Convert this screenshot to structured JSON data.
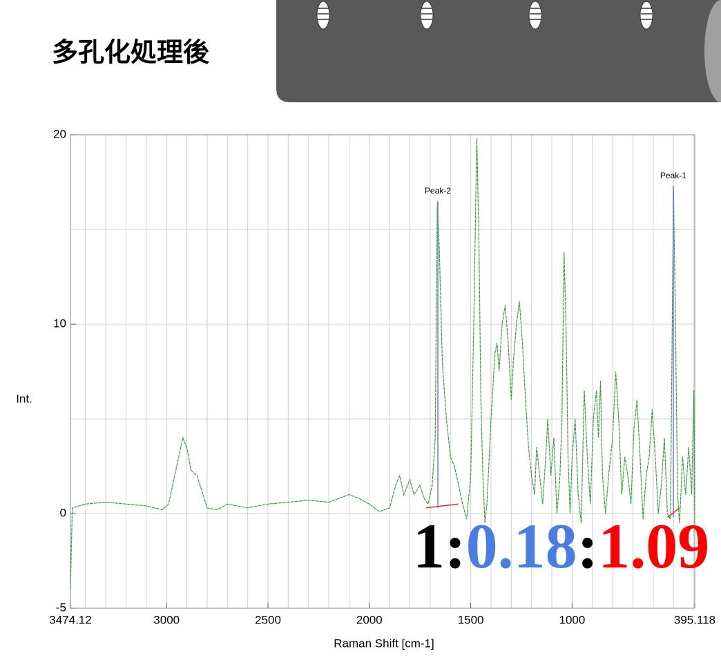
{
  "header": {
    "title": "多孔化処理後"
  },
  "chart_data": {
    "type": "line",
    "xlabel": "Raman Shift [cm-1]",
    "ylabel": "Int.",
    "xlim": [
      3474.12,
      395.118
    ],
    "ylim": [
      -5,
      20
    ],
    "xticks": [
      3474.12,
      3000,
      2500,
      2000,
      1500,
      1000,
      395.118
    ],
    "yticks": [
      -5,
      0,
      10,
      20
    ],
    "xgrid": [
      3400,
      3300,
      3200,
      3100,
      3000,
      2900,
      2800,
      2700,
      2600,
      2500,
      2400,
      2300,
      2200,
      2100,
      2000,
      1900,
      1800,
      1700,
      1600,
      1500,
      1400,
      1300,
      1200,
      1100,
      1000,
      900,
      800,
      700,
      600,
      500,
      400
    ],
    "ygrid": [
      -5,
      0,
      5,
      10,
      15,
      20
    ],
    "grid": true,
    "series": [
      {
        "color": "#3f9b3f",
        "x": [
          3474.12,
          3465,
          3400,
          3300,
          3200,
          3100,
          3020,
          2990,
          2950,
          2920,
          2900,
          2880,
          2850,
          2820,
          2800,
          2750,
          2700,
          2600,
          2500,
          2400,
          2300,
          2200,
          2100,
          2050,
          2000,
          1950,
          1900,
          1870,
          1850,
          1830,
          1800,
          1780,
          1750,
          1730,
          1710,
          1690,
          1675,
          1665,
          1655,
          1640,
          1620,
          1600,
          1580,
          1560,
          1540,
          1520,
          1500,
          1485,
          1470,
          1460,
          1450,
          1440,
          1430,
          1420,
          1400,
          1380,
          1370,
          1360,
          1345,
          1330,
          1315,
          1300,
          1290,
          1275,
          1260,
          1245,
          1230,
          1215,
          1200,
          1185,
          1175,
          1160,
          1145,
          1130,
          1120,
          1105,
          1090,
          1075,
          1060,
          1050,
          1040,
          1030,
          1020,
          1010,
          1000,
          985,
          970,
          955,
          940,
          925,
          910,
          895,
          880,
          870,
          860,
          850,
          835,
          820,
          800,
          785,
          770,
          755,
          740,
          725,
          710,
          695,
          680,
          665,
          650,
          635,
          620,
          605,
          590,
          575,
          560,
          545,
          530,
          515,
          500,
          490,
          480,
          470,
          455,
          440,
          425,
          410,
          400,
          395.118
        ],
        "values": [
          -4,
          0.3,
          0.5,
          0.6,
          0.5,
          0.4,
          0.2,
          0.5,
          2.5,
          4.0,
          3.5,
          2.3,
          2.0,
          1.0,
          0.3,
          0.2,
          0.5,
          0.3,
          0.5,
          0.6,
          0.7,
          0.6,
          1.0,
          0.8,
          0.5,
          0.1,
          0.3,
          1.5,
          2.0,
          1.0,
          1.8,
          1.0,
          1.5,
          0.8,
          0.5,
          1.5,
          4,
          16.4,
          14,
          8,
          5,
          3,
          2.5,
          1.5,
          0.5,
          -0.3,
          2,
          10,
          19.8,
          15,
          6,
          2,
          -0.5,
          0.5,
          5,
          8.5,
          9,
          7.5,
          10,
          11,
          9,
          6,
          8,
          10,
          11.2,
          9,
          6,
          3.5,
          2,
          1,
          3.5,
          2,
          0.5,
          3,
          5,
          2,
          4,
          0,
          2,
          5,
          13.8,
          10,
          3,
          0,
          3,
          5,
          1,
          -0.5,
          6.5,
          3,
          0.5,
          5,
          6.5,
          4,
          7,
          2,
          0,
          2,
          4,
          7.5,
          5,
          1,
          3,
          2,
          0.5,
          4.5,
          6,
          3,
          -0.3,
          2,
          3,
          5.5,
          3,
          0,
          1.5,
          4,
          0,
          -0.3,
          17.2,
          10,
          1,
          -0.5,
          3,
          1,
          3.5,
          1,
          6.5,
          -1
        ]
      }
    ],
    "peaks": [
      {
        "label": "Peak-2",
        "x": 1662,
        "top": 16.5,
        "base_x": [
          1720,
          1560
        ],
        "base_y": [
          0.3,
          0.5
        ]
      },
      {
        "label": "Peak-1",
        "x": 501,
        "top": 17.3,
        "base_x": [
          530,
          470
        ],
        "base_y": [
          -0.2,
          0.3
        ]
      }
    ],
    "ratio": {
      "parts": [
        "1",
        ":",
        "0.18",
        ":",
        "1.09"
      ],
      "colors": [
        "#000000",
        "#000000",
        "#4a7de0",
        "#000000",
        "#ff0000"
      ]
    }
  }
}
